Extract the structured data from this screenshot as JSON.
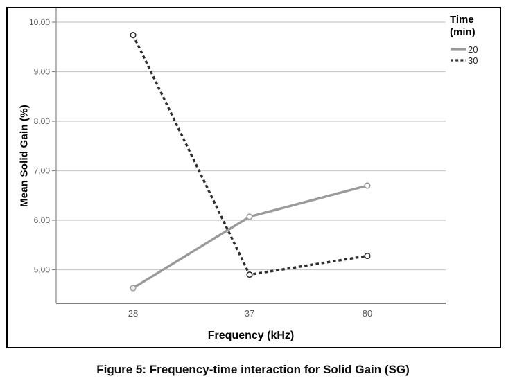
{
  "figure": {
    "caption": "Figure 5: Frequency-time interaction for Solid Gain (SG)"
  },
  "legend": {
    "title_line1": "Time",
    "title_line2": "(min)"
  },
  "chart_data": {
    "type": "line",
    "title": "",
    "xlabel": "Frequency (kHz)",
    "ylabel": "Mean Solid Gain (%)",
    "categories": [
      "28",
      "37",
      "80"
    ],
    "series": [
      {
        "name": "20",
        "values": [
          4.63,
          6.07,
          6.7
        ],
        "style": "solid",
        "color": "#9a9a9a"
      },
      {
        "name": "30",
        "values": [
          9.74,
          4.9,
          5.28
        ],
        "style": "dashed",
        "color": "#2f2f2f"
      }
    ],
    "legend_title": "Time (min)",
    "legend_position": "outside-top-right",
    "ylim": [
      4.33,
      10.31
    ],
    "yticks_labels": [
      "10,00",
      "9,00",
      "8,00",
      "7,00",
      "6,00",
      "5,00"
    ],
    "ytick_values": [
      10,
      9,
      8,
      7,
      6,
      5
    ],
    "grid": "horizontal-only",
    "marker": "open-circle"
  },
  "colors": {
    "grid_line": "#c9c9c9",
    "bottom_axis": "#7f7f7f",
    "left_axis": "#9e9e9e",
    "tick_text": "#595959",
    "axis_title_text": "#000000",
    "figure_border": "#000000",
    "background": "#ffffff"
  }
}
